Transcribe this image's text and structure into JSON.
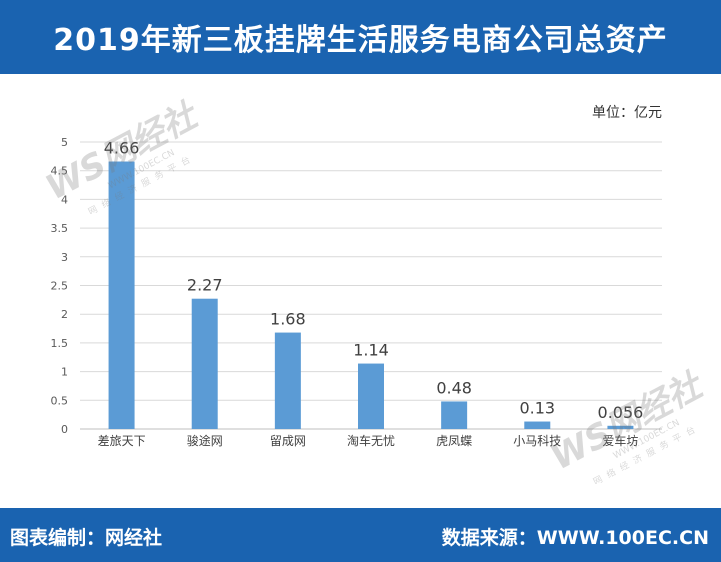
{
  "header": {
    "title": "2019年新三板挂牌生活服务电商公司总资产"
  },
  "unit_label": "单位：亿元",
  "footer": {
    "editor": "图表编制：网经社",
    "source": "数据来源：WWW.100EC.CN"
  },
  "watermark": {
    "logo": "WS网经社",
    "url": "WWW.100EC.CN",
    "tagline": "网络经济服务平台"
  },
  "colors": {
    "header_bg": "#1a63b0",
    "bar": "#5b9bd5",
    "grid": "#d9d9d9"
  },
  "chart_data": {
    "type": "bar",
    "categories": [
      "差旅天下",
      "骏途网",
      "留成网",
      "淘车无忧",
      "虎凤蝶",
      "小马科技",
      "爱车坊"
    ],
    "values": [
      4.66,
      2.27,
      1.68,
      1.14,
      0.48,
      0.13,
      0.056
    ],
    "value_labels": [
      "4.66",
      "2.27",
      "1.68",
      "1.14",
      "0.48",
      "0.13",
      "0.056"
    ],
    "yticks": [
      "0",
      "0.5",
      "1",
      "1.5",
      "2",
      "2.5",
      "3",
      "3.5",
      "4",
      "4.5",
      "5"
    ],
    "ylim": [
      0,
      5
    ],
    "grid": true
  }
}
